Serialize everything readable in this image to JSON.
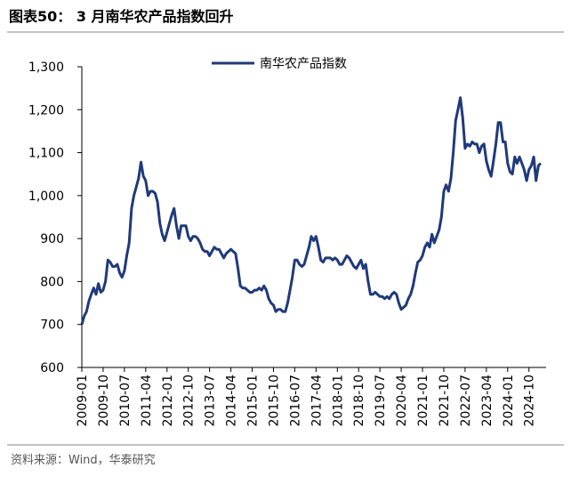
{
  "chart_data": {
    "type": "line",
    "title": "图表50： 3 月南华农产品指数回升",
    "source": "资料来源：Wind，华泰研究",
    "categories": [
      "2009-01",
      null,
      null,
      null,
      null,
      null,
      null,
      null,
      null,
      "2009-10",
      null,
      null,
      null,
      null,
      null,
      null,
      null,
      null,
      "2010-07",
      null,
      null,
      null,
      null,
      null,
      null,
      null,
      null,
      "2011-04",
      null,
      null,
      null,
      null,
      null,
      null,
      null,
      null,
      "2012-01",
      null,
      null,
      null,
      null,
      null,
      null,
      null,
      null,
      "2012-10",
      null,
      null,
      null,
      null,
      null,
      null,
      null,
      null,
      "2013-07",
      null,
      null,
      null,
      null,
      null,
      null,
      null,
      null,
      "2014-04",
      null,
      null,
      null,
      null,
      null,
      null,
      null,
      null,
      "2015-01",
      null,
      null,
      null,
      null,
      null,
      null,
      null,
      null,
      "2015-10",
      null,
      null,
      null,
      null,
      null,
      null,
      null,
      null,
      "2016-07",
      null,
      null,
      null,
      null,
      null,
      null,
      null,
      null,
      "2017-04",
      null,
      null,
      null,
      null,
      null,
      null,
      null,
      null,
      "2018-01",
      null,
      null,
      null,
      null,
      null,
      null,
      null,
      null,
      "2018-10",
      null,
      null,
      null,
      null,
      null,
      null,
      null,
      null,
      "2019-07",
      null,
      null,
      null,
      null,
      null,
      null,
      null,
      null,
      "2020-04",
      null,
      null,
      null,
      null,
      null,
      null,
      null,
      null,
      "2021-01",
      null,
      null,
      null,
      null,
      null,
      null,
      null,
      null,
      "2021-10",
      null,
      null,
      null,
      null,
      null,
      null,
      null,
      null,
      "2022-07",
      null,
      null,
      null,
      null,
      null,
      null,
      null,
      null,
      "2023-04",
      null,
      null,
      null,
      null,
      null,
      null,
      null,
      null,
      "2024-01",
      null,
      null,
      null,
      null,
      null,
      null,
      null,
      null,
      "2024-10",
      null,
      null,
      null,
      null,
      null
    ],
    "series": [
      {
        "name": "南华农产品指数",
        "color": "#1f3a7a",
        "values": [
          700,
          720,
          730,
          755,
          770,
          785,
          770,
          795,
          775,
          780,
          800,
          850,
          845,
          835,
          835,
          840,
          820,
          810,
          825,
          860,
          890,
          970,
          1000,
          1020,
          1040,
          1078,
          1045,
          1035,
          1000,
          1010,
          1010,
          1005,
          985,
          935,
          910,
          895,
          915,
          935,
          955,
          970,
          930,
          900,
          930,
          930,
          930,
          905,
          895,
          905,
          905,
          900,
          890,
          875,
          870,
          870,
          860,
          870,
          880,
          875,
          875,
          865,
          855,
          865,
          870,
          875,
          870,
          865,
          830,
          790,
          785,
          785,
          780,
          775,
          775,
          780,
          780,
          785,
          780,
          790,
          780,
          760,
          750,
          745,
          730,
          735,
          735,
          730,
          730,
          750,
          780,
          810,
          850,
          850,
          840,
          835,
          840,
          860,
          880,
          905,
          895,
          905,
          880,
          850,
          845,
          855,
          855,
          855,
          850,
          855,
          850,
          840,
          840,
          850,
          860,
          855,
          845,
          835,
          830,
          840,
          850,
          830,
          840,
          800,
          770,
          770,
          775,
          770,
          765,
          765,
          760,
          765,
          760,
          770,
          775,
          770,
          750,
          735,
          740,
          745,
          760,
          770,
          790,
          820,
          845,
          850,
          860,
          880,
          890,
          880,
          910,
          890,
          905,
          920,
          950,
          1010,
          1025,
          1010,
          1040,
          1100,
          1175,
          1200,
          1228,
          1180,
          1110,
          1120,
          1115,
          1125,
          1120,
          1120,
          1100,
          1115,
          1120,
          1080,
          1060,
          1045,
          1080,
          1120,
          1170,
          1170,
          1125,
          1125,
          1075,
          1055,
          1050,
          1090,
          1075,
          1090,
          1075,
          1060,
          1035,
          1060,
          1070,
          1090,
          1035,
          1070,
          1075
        ]
      }
    ],
    "ylim": [
      600,
      1300
    ],
    "yticks": [
      600,
      700,
      800,
      900,
      {
        "value": 1000,
        "label": "1,000"
      },
      {
        "value": 1100,
        "label": "1,100"
      },
      {
        "value": 1200,
        "label": "1,200"
      },
      {
        "value": 1300,
        "label": "1,300"
      }
    ],
    "legend": "top"
  }
}
